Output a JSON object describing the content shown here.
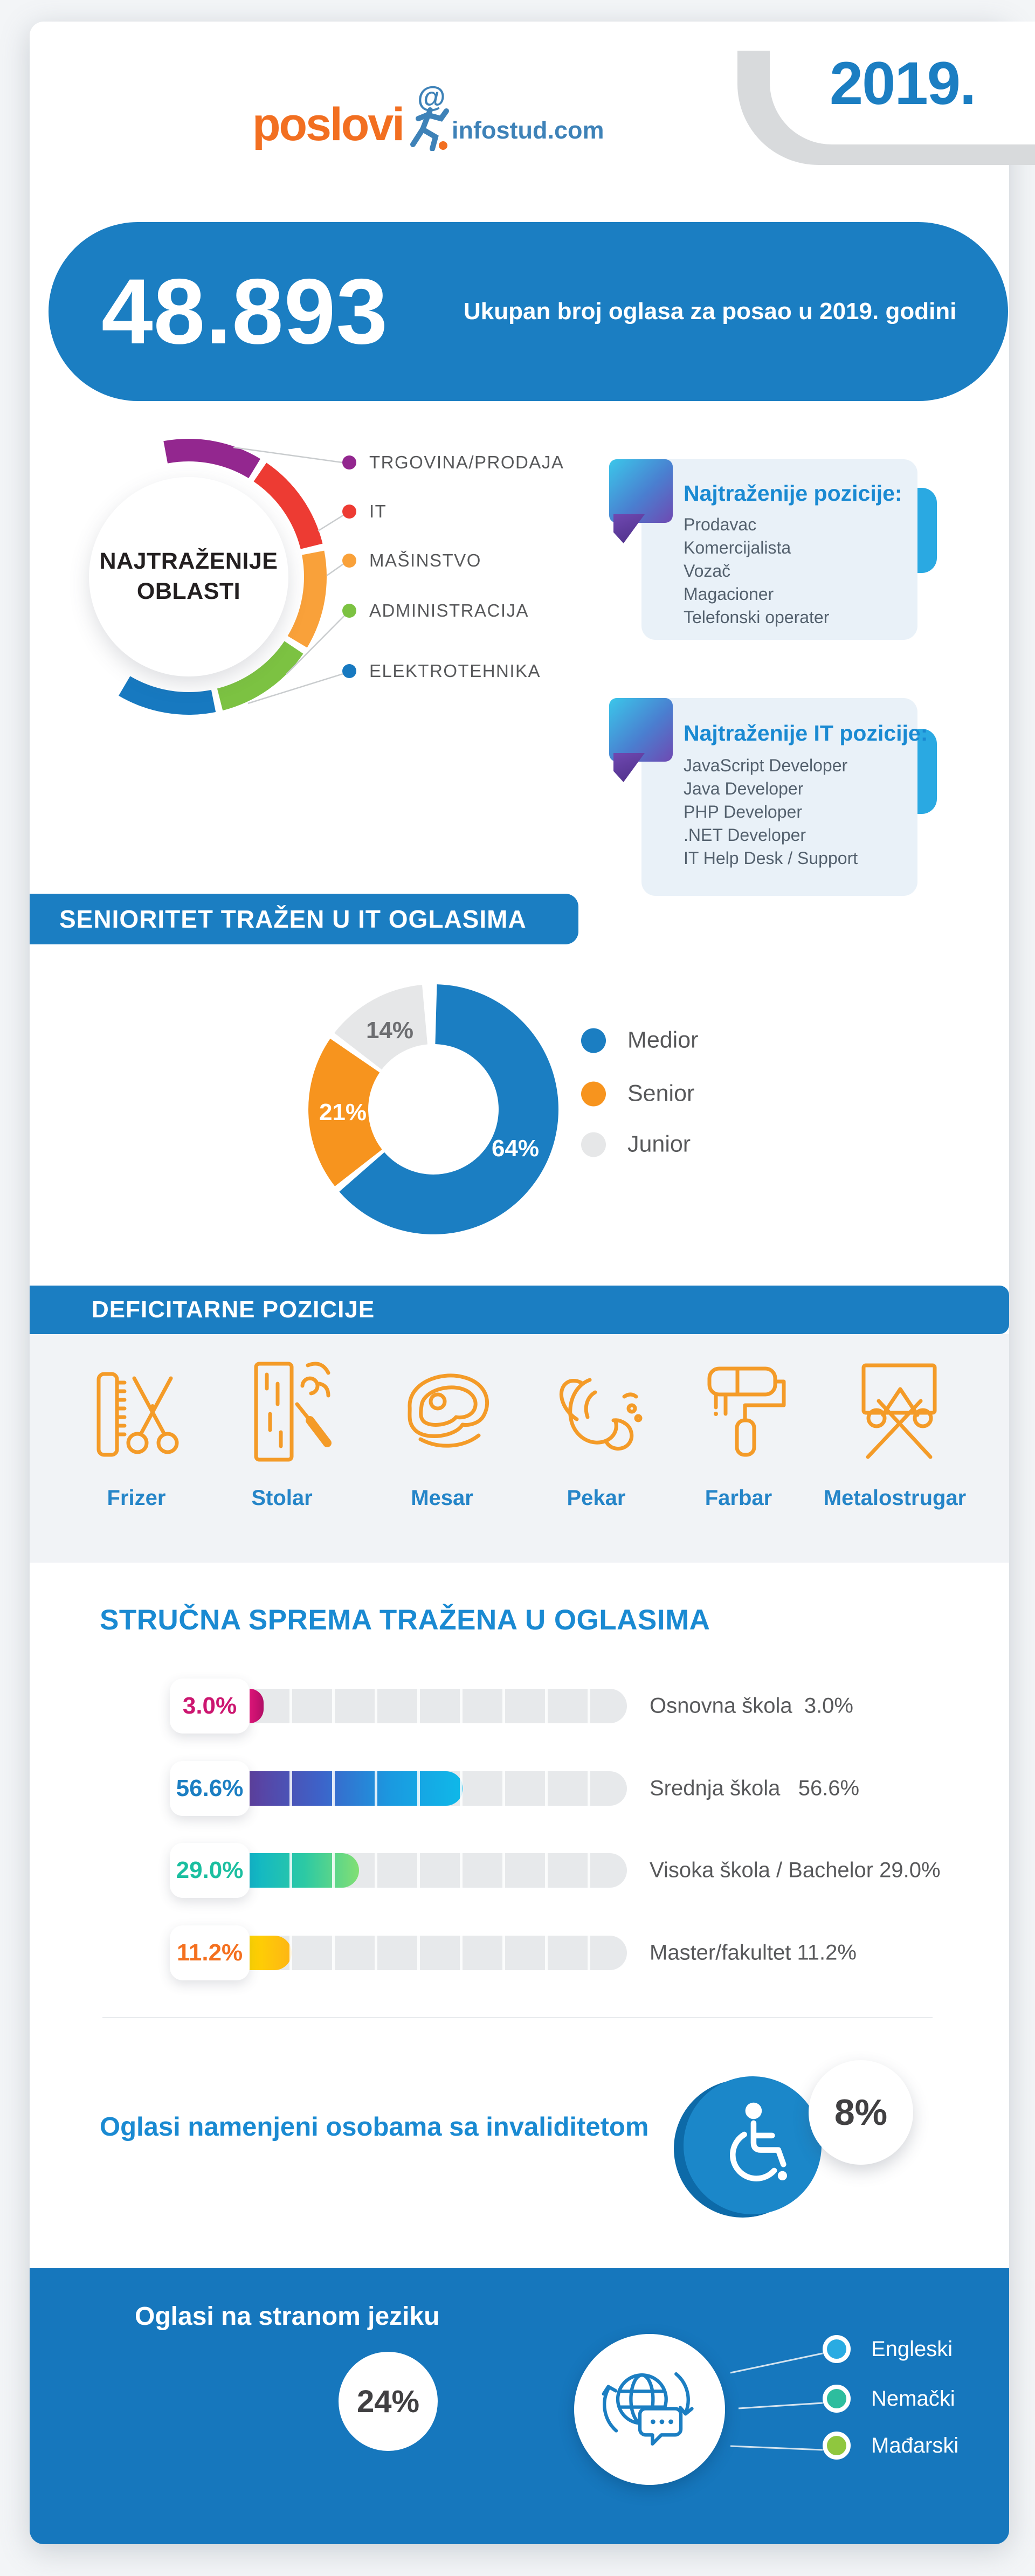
{
  "year_badge": "2019.",
  "logo": {
    "wordmark": "poslovi",
    "domain": "infostud.com"
  },
  "hero": {
    "total": "48.893",
    "caption": "Ukupan broj oglasa za posao u 2019. godini"
  },
  "oblasti": {
    "circle_title": [
      "NAJTRAŽENIJE",
      "OBLASTI"
    ],
    "items": [
      {
        "label": "TRGOVINA/PRODAJA",
        "color": "#93278f"
      },
      {
        "label": "IT",
        "color": "#ed3b33"
      },
      {
        "label": "MAŠINSTVO",
        "color": "#f9a13a"
      },
      {
        "label": "ADMINISTRACIJA",
        "color": "#7cc242"
      },
      {
        "label": "ELEKTROTEHNIKA",
        "color": "#1779c0"
      }
    ]
  },
  "positions_box": {
    "title": "Najtraženije pozicije:",
    "items": [
      "Prodavac",
      "Komercijalista",
      "Vozač",
      "Magacioner",
      "Telefonski operater"
    ]
  },
  "it_positions_box": {
    "title": "Najtraženije IT pozicije:",
    "items": [
      "JavaScript Developer",
      "Java Developer",
      "PHP Developer",
      ".NET Developer",
      "IT Help Desk / Support"
    ]
  },
  "seniority_section": {
    "header": "SENIORITET TRAŽEN U IT OGLASIMA"
  },
  "deficit_section": {
    "header": "DEFICITARNE POZICIJE",
    "items": [
      {
        "label": "Frizer",
        "icon": "scissors-comb-icon"
      },
      {
        "label": "Stolar",
        "icon": "wood-plank-chisel-icon"
      },
      {
        "label": "Mesar",
        "icon": "steak-icon"
      },
      {
        "label": "Pekar",
        "icon": "croissant-icon"
      },
      {
        "label": "Farbar",
        "icon": "paint-roller-icon"
      },
      {
        "label": "Metalostrugar",
        "icon": "metal-lathe-icon"
      }
    ]
  },
  "education_section": {
    "title": "STRUČNA SPREMA TRAŽENA U OGLASIMA",
    "rows": [
      {
        "pct_label": "3.0%",
        "right_label": "Osnovna škola  3.0%",
        "color": "#cc1670",
        "gradient": [
          "#e6127a",
          "#b01066"
        ]
      },
      {
        "pct_label": "56.6%",
        "right_label": "Srednja škola   56.6%",
        "color": "#1b7ec2",
        "gradient": [
          "#5d3f9e",
          "#3d63c9",
          "#1a9ae0",
          "#0fb9e9"
        ]
      },
      {
        "pct_label": "29.0%",
        "right_label": "Visoka škola / Bachelor 29.0%",
        "color": "#1bbfa0",
        "gradient": [
          "#0fb5c9",
          "#2cc9a4",
          "#82df74"
        ]
      },
      {
        "pct_label": "11.2%",
        "right_label": "Master/fakultet 11.2%",
        "color": "#f4701f",
        "gradient": [
          "#ffd500",
          "#fdb515"
        ]
      }
    ]
  },
  "disability_section": {
    "title": "Oglasi namenjeni osobama sa invaliditetom",
    "badge": "8%"
  },
  "foreign_section": {
    "title": "Oglasi na stranom jeziku",
    "share": "24%",
    "languages": [
      {
        "label": "Engleski",
        "color": "#29abe2"
      },
      {
        "label": "Nemački",
        "color": "#2dbd9e"
      },
      {
        "label": "Mađarski",
        "color": "#8fc73e"
      }
    ]
  },
  "colors": {
    "primary_blue": "#1b7ec2",
    "heading_blue": "#1a8ad2",
    "icon_orange": "#f49b28",
    "deficit_label_blue": "#2585c8"
  },
  "chart_data": [
    {
      "type": "pie",
      "subtype": "donut",
      "title": "SENIORITET TRAŽEN U IT OGLASIMA",
      "labels": [
        "Medior",
        "Senior",
        "Junior"
      ],
      "values": [
        64,
        21,
        14
      ],
      "unit": "%",
      "colors": [
        "#1b7ec2",
        "#f7941e",
        "#e6e7e8"
      ],
      "slice_label_colors": [
        "#ffffff",
        "#ffffff",
        "#6d6e71"
      ],
      "legend_position": "right",
      "start_angle_deg": 0,
      "direction": "clockwise"
    },
    {
      "type": "bar",
      "orientation": "horizontal",
      "title": "STRUČNA SPREMA TRAŽENA U OGLASIMA",
      "categories": [
        "Osnovna škola",
        "Srednja škola",
        "Visoka škola / Bachelor",
        "Master/fakultet"
      ],
      "values": [
        3.0,
        56.6,
        29.0,
        11.2
      ],
      "unit": "%",
      "xlim": [
        0,
        100
      ],
      "grid": false,
      "data_labels": true
    },
    {
      "type": "categorical-ring",
      "title": "NAJTRAŽENIJE OBLASTI",
      "categories": [
        "TRGOVINA/PRODAJA",
        "IT",
        "MAŠINSTVO",
        "ADMINISTRACIJA",
        "ELEKTROTEHNIKA"
      ],
      "values": null,
      "note": "ranking list only – no numeric values shown"
    }
  ]
}
